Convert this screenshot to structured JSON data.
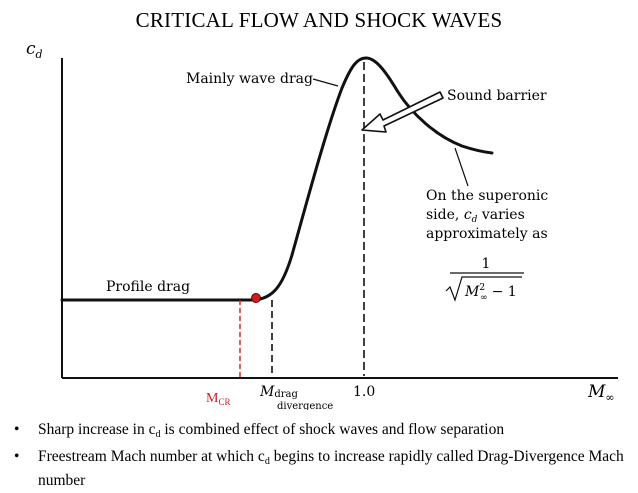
{
  "title": "CRITICAL FLOW AND SHOCK WAVES",
  "axis": {
    "y_label": "c",
    "y_label_sub": "d",
    "x_label": "M",
    "x_label_sub": "∞"
  },
  "labels": {
    "profile_drag": "Profile drag",
    "wave_drag": "Mainly wave drag",
    "sound_barrier": "Sound barrier",
    "supersonic_line1": "On the superonic",
    "supersonic_line2_a": "side, ",
    "supersonic_line2_c": "c",
    "supersonic_line2_d": "d",
    "supersonic_line2_b": " varies",
    "supersonic_line3": "approximately as",
    "formula_num": "1",
    "formula_M": "M",
    "formula_sup": "2",
    "formula_sub": "∞",
    "formula_tail": "− 1"
  },
  "ticks": {
    "mcr_main": "M",
    "mcr_sub": "CR",
    "mdrag_main": "M",
    "mdrag_sub": "drag",
    "mdrag_line2": "divergence",
    "one": "1.0"
  },
  "bullets": [
    {
      "pre": "Sharp increase in c",
      "sub": "d",
      "post": " is combined effect of shock waves and flow separation"
    },
    {
      "pre": "Freestream Mach number at which c",
      "sub": "d",
      "post": " begins to increase rapidly called Drag-Divergence Mach number"
    }
  ],
  "colors": {
    "mcr": "#cc1e1e",
    "ink": "#111111"
  }
}
